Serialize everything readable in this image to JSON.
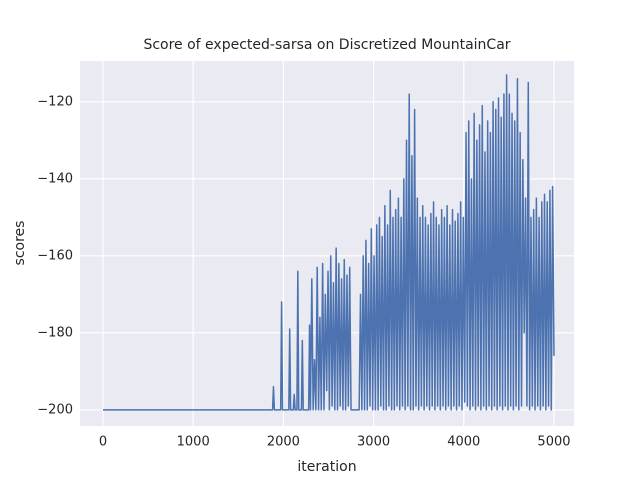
{
  "chart_data": {
    "type": "line",
    "title": "Score of expected-sarsa on Discretized MountainCar",
    "xlabel": "iteration",
    "ylabel": "scores",
    "color": "#4c72b0",
    "grid": true,
    "xlim": [
      -255,
      5222
    ],
    "ylim": [
      -204.2,
      -109.4
    ],
    "xticks": [
      0,
      1000,
      2000,
      3000,
      4000,
      5000
    ],
    "yticks": [
      {
        "value": -200,
        "label": "−200"
      },
      {
        "value": -180,
        "label": "−180"
      },
      {
        "value": -160,
        "label": "−160"
      },
      {
        "value": -140,
        "label": "−140"
      },
      {
        "value": -120,
        "label": "−120"
      }
    ],
    "x": [
      0,
      1880,
      1890,
      1900,
      1970,
      1980,
      1990,
      2060,
      2070,
      2080,
      2110,
      2120,
      2130,
      2150,
      2160,
      2170,
      2200,
      2210,
      2220,
      2280,
      2290,
      2300,
      2315,
      2330,
      2345,
      2360,
      2375,
      2390,
      2405,
      2420,
      2435,
      2450,
      2465,
      2480,
      2495,
      2510,
      2525,
      2540,
      2555,
      2570,
      2585,
      2600,
      2615,
      2630,
      2645,
      2660,
      2675,
      2690,
      2705,
      2720,
      2735,
      2750,
      2840,
      2855,
      2870,
      2885,
      2900,
      2915,
      2930,
      2945,
      2960,
      2975,
      2990,
      3005,
      3020,
      3035,
      3050,
      3065,
      3080,
      3095,
      3110,
      3125,
      3140,
      3155,
      3170,
      3185,
      3200,
      3215,
      3230,
      3245,
      3260,
      3275,
      3290,
      3305,
      3320,
      3335,
      3350,
      3365,
      3380,
      3395,
      3410,
      3425,
      3440,
      3455,
      3470,
      3485,
      3500,
      3515,
      3530,
      3545,
      3560,
      3575,
      3590,
      3605,
      3620,
      3635,
      3650,
      3665,
      3680,
      3695,
      3710,
      3725,
      3740,
      3755,
      3770,
      3785,
      3800,
      3815,
      3830,
      3845,
      3860,
      3875,
      3890,
      3905,
      3920,
      3935,
      3950,
      3965,
      3980,
      3995,
      4010,
      4025,
      4040,
      4055,
      4070,
      4085,
      4100,
      4115,
      4130,
      4145,
      4160,
      4175,
      4190,
      4205,
      4220,
      4235,
      4250,
      4265,
      4280,
      4295,
      4310,
      4325,
      4340,
      4355,
      4370,
      4385,
      4400,
      4415,
      4430,
      4445,
      4460,
      4475,
      4490,
      4505,
      4520,
      4535,
      4550,
      4565,
      4580,
      4595,
      4610,
      4625,
      4640,
      4655,
      4670,
      4685,
      4700,
      4715,
      4730,
      4745,
      4760,
      4775,
      4790,
      4805,
      4820,
      4835,
      4850,
      4865,
      4880,
      4895,
      4910,
      4925,
      4940,
      4955,
      4970,
      4985,
      5000
    ],
    "values": [
      -200,
      -200,
      -194,
      -200,
      -200,
      -172,
      -200,
      -200,
      -179,
      -200,
      -200,
      -196,
      -200,
      -200,
      -164,
      -200,
      -200,
      -182,
      -200,
      -200,
      -178,
      -200,
      -166,
      -200,
      -187,
      -200,
      -163,
      -200,
      -176,
      -200,
      -162,
      -200,
      -170,
      -195,
      -164,
      -200,
      -160,
      -199,
      -167,
      -200,
      -158,
      -200,
      -162,
      -199,
      -166,
      -200,
      -161,
      -200,
      -165,
      -199,
      -163,
      -200,
      -200,
      -170,
      -200,
      -160,
      -200,
      -156,
      -200,
      -162,
      -199,
      -153,
      -200,
      -160,
      -200,
      -152,
      -200,
      -150,
      -199,
      -155,
      -200,
      -147,
      -200,
      -152,
      -199,
      -143,
      -200,
      -150,
      -200,
      -148,
      -199,
      -145,
      -200,
      -150,
      -199,
      -140,
      -200,
      -130,
      -199,
      -118,
      -200,
      -134,
      -200,
      -122,
      -199,
      -145,
      -200,
      -150,
      -199,
      -147,
      -200,
      -150,
      -199,
      -152,
      -200,
      -149,
      -199,
      -146,
      -200,
      -150,
      -199,
      -152,
      -200,
      -148,
      -199,
      -150,
      -200,
      -147,
      -199,
      -152,
      -200,
      -148,
      -199,
      -151,
      -200,
      -149,
      -199,
      -146,
      -200,
      -150,
      -198,
      -128,
      -199,
      -125,
      -200,
      -140,
      -199,
      -123,
      -200,
      -130,
      -199,
      -126,
      -200,
      -121,
      -199,
      -133,
      -200,
      -125,
      -199,
      -128,
      -200,
      -120,
      -199,
      -122,
      -200,
      -119,
      -199,
      -124,
      -200,
      -118,
      -199,
      -113,
      -200,
      -118,
      -199,
      -123,
      -200,
      -125,
      -199,
      -114,
      -200,
      -128,
      -199,
      -135,
      -180,
      -145,
      -199,
      -115,
      -200,
      -150,
      -199,
      -148,
      -200,
      -145,
      -199,
      -150,
      -200,
      -146,
      -199,
      -144,
      -200,
      -146,
      -199,
      -143,
      -200,
      -142,
      -186
    ]
  }
}
